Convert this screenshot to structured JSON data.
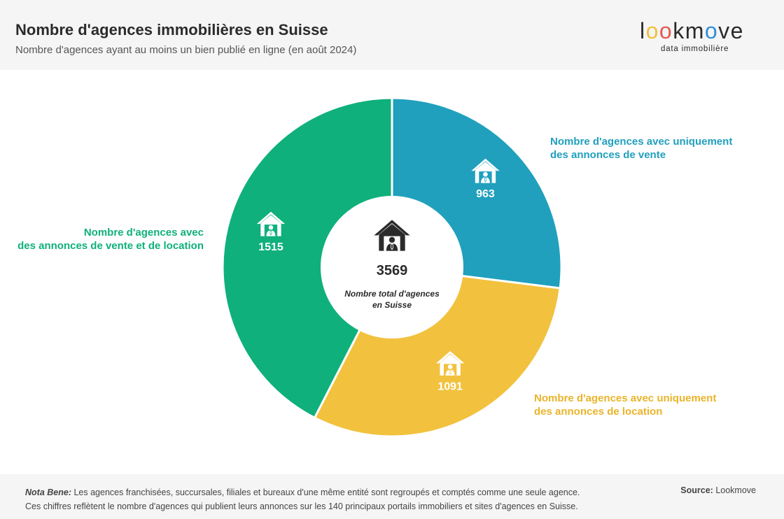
{
  "header": {
    "title": "Nombre d'agences immobilières en Suisse",
    "subtitle": "Nombre d'agences ayant au moins un bien publié en ligne (en août 2024)"
  },
  "logo": {
    "letters": [
      "l",
      "o",
      "o",
      "k",
      "m",
      "o",
      "v",
      "e"
    ],
    "letter_colors": [
      "#2b2b2b",
      "#f0c13b",
      "#e45a4f",
      "#2b2b2b",
      "#2b2b2b",
      "#2f8fd8",
      "#2b2b2b",
      "#2b2b2b"
    ],
    "tagline": "data immobilière"
  },
  "chart_data": {
    "type": "pie",
    "donut": true,
    "categories": [
      "Nombre d'agences avec uniquement des annonces de vente",
      "Nombre d'agences avec uniquement des annonces de location",
      "Nombre d'agences avec des annonces de vente et de location"
    ],
    "values": [
      963,
      1091,
      1515
    ],
    "colors": [
      "#20a0bd",
      "#f2c23e",
      "#0fb07b"
    ],
    "labels": [
      {
        "line1": "Nombre d'agences avec uniquement",
        "line2": "des annonces de vente"
      },
      {
        "line1": "Nombre d'agences avec uniquement",
        "line2": "des annonces de location"
      },
      {
        "line1": "Nombre d'agences avec",
        "line2": "des annonces de vente et de location"
      }
    ],
    "center": {
      "total": "3569",
      "line1": "Nombre total d'agences",
      "line2": "en Suisse"
    },
    "icon": "house-agent-icon"
  },
  "footer": {
    "nota_label": "Nota Bene:",
    "nota_line1": "Les agences franchisées, succursales, filiales et bureaux d'une même entité sont regroupés et comptés comme une seule agence.",
    "nota_line2": "Ces chiffres reflètent le nombre d'agences qui publient leurs annonces sur les 140 principaux portails immobiliers et sites d'agences en Suisse.",
    "source_label": "Source:",
    "source_value": "Lookmove"
  }
}
